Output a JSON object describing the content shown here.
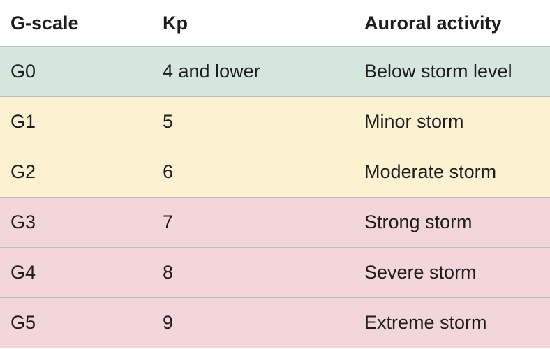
{
  "table": {
    "headers": [
      "G-scale",
      "Kp",
      "Auroral activity"
    ],
    "rows": [
      {
        "gscale": "G0",
        "kp": "4 and lower",
        "activity": "Below storm level",
        "color": "#d4e6de"
      },
      {
        "gscale": "G1",
        "kp": "5",
        "activity": "Minor storm",
        "color": "#fcf2d2"
      },
      {
        "gscale": "G2",
        "kp": "6",
        "activity": "Moderate storm",
        "color": "#fcf2d2"
      },
      {
        "gscale": "G3",
        "kp": "7",
        "activity": "Strong storm",
        "color": "#f2d6d9"
      },
      {
        "gscale": "G4",
        "kp": "8",
        "activity": "Severe storm",
        "color": "#f2d6d9"
      },
      {
        "gscale": "G5",
        "kp": "9",
        "activity": "Extreme storm",
        "color": "#f2d6d9"
      }
    ]
  }
}
